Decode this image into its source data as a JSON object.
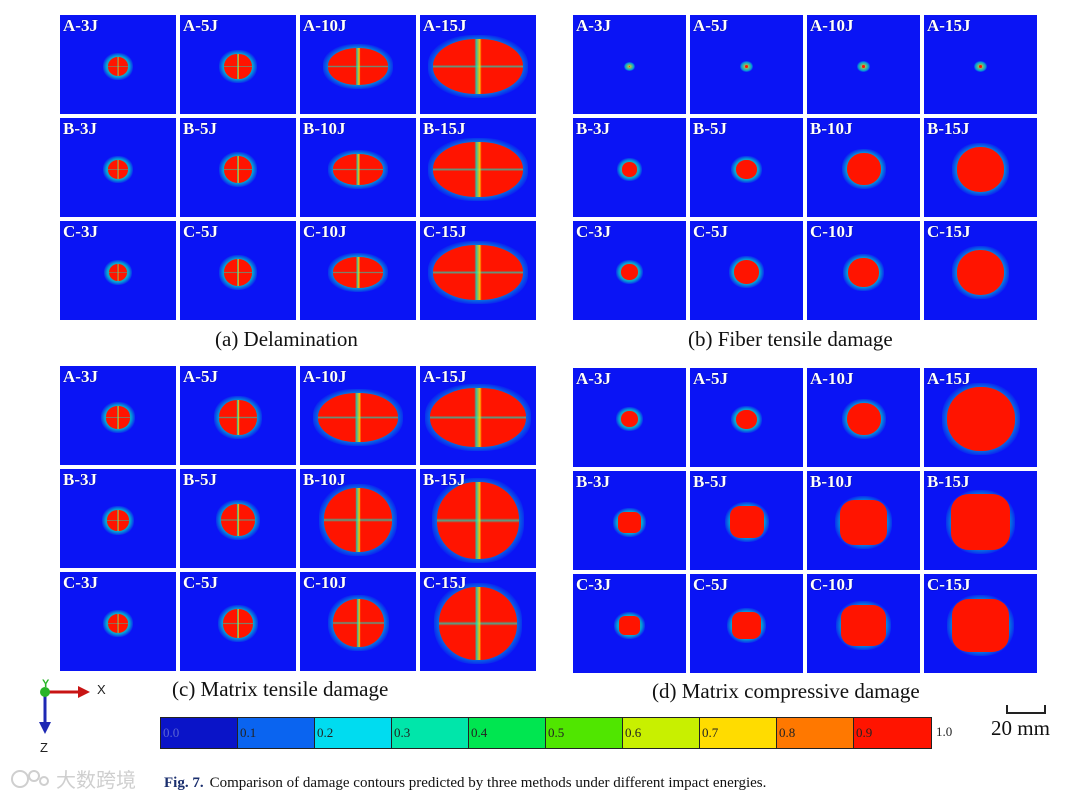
{
  "panels": [
    {
      "id": "a",
      "caption": "(a) Delamination",
      "rows": [
        [
          "A-3J",
          "A-5J",
          "A-10J",
          "A-15J"
        ],
        [
          "B-3J",
          "B-5J",
          "B-10J",
          "B-15J"
        ],
        [
          "C-3J",
          "C-5J",
          "C-10J",
          "C-15J"
        ]
      ]
    },
    {
      "id": "b",
      "caption": "(b) Fiber tensile damage",
      "rows": [
        [
          "A-3J",
          "A-5J",
          "A-10J",
          "A-15J"
        ],
        [
          "B-3J",
          "B-5J",
          "B-10J",
          "B-15J"
        ],
        [
          "C-3J",
          "C-5J",
          "C-10J",
          "C-15J"
        ]
      ]
    },
    {
      "id": "c",
      "caption": "(c) Matrix tensile damage",
      "rows": [
        [
          "A-3J",
          "A-5J",
          "A-10J",
          "A-15J"
        ],
        [
          "B-3J",
          "B-5J",
          "B-10J",
          "B-15J"
        ],
        [
          "C-3J",
          "C-5J",
          "C-10J",
          "C-15J"
        ]
      ]
    },
    {
      "id": "d",
      "caption": "(d) Matrix compressive damage",
      "rows": [
        [
          "A-3J",
          "A-5J",
          "A-10J",
          "A-15J"
        ],
        [
          "B-3J",
          "B-5J",
          "B-10J",
          "B-15J"
        ],
        [
          "C-3J",
          "C-5J",
          "C-10J",
          "C-15J"
        ]
      ]
    }
  ],
  "axes": {
    "y": "Y",
    "x": "X",
    "z": "Z"
  },
  "colorbar": {
    "ticks": [
      "0.0",
      "0.1",
      "0.2",
      "0.3",
      "0.4",
      "0.5",
      "0.6",
      "0.7",
      "0.8",
      "0.9"
    ],
    "end_label": "1.0",
    "colors": [
      "#0a14c8",
      "#0a64f0",
      "#00dcf0",
      "#00e6aa",
      "#00e650",
      "#50e600",
      "#c8f000",
      "#ffdc00",
      "#ff7800",
      "#ff1400"
    ]
  },
  "scale_bar": {
    "label": "20 mm"
  },
  "watermark": {
    "text": "大数跨境"
  },
  "caption": {
    "label": "Fig. 7.",
    "text": "Comparison of damage contours predicted by three methods under different impact energies."
  },
  "colors": {
    "background": "#0a14f5",
    "damage": "#ff1400"
  }
}
